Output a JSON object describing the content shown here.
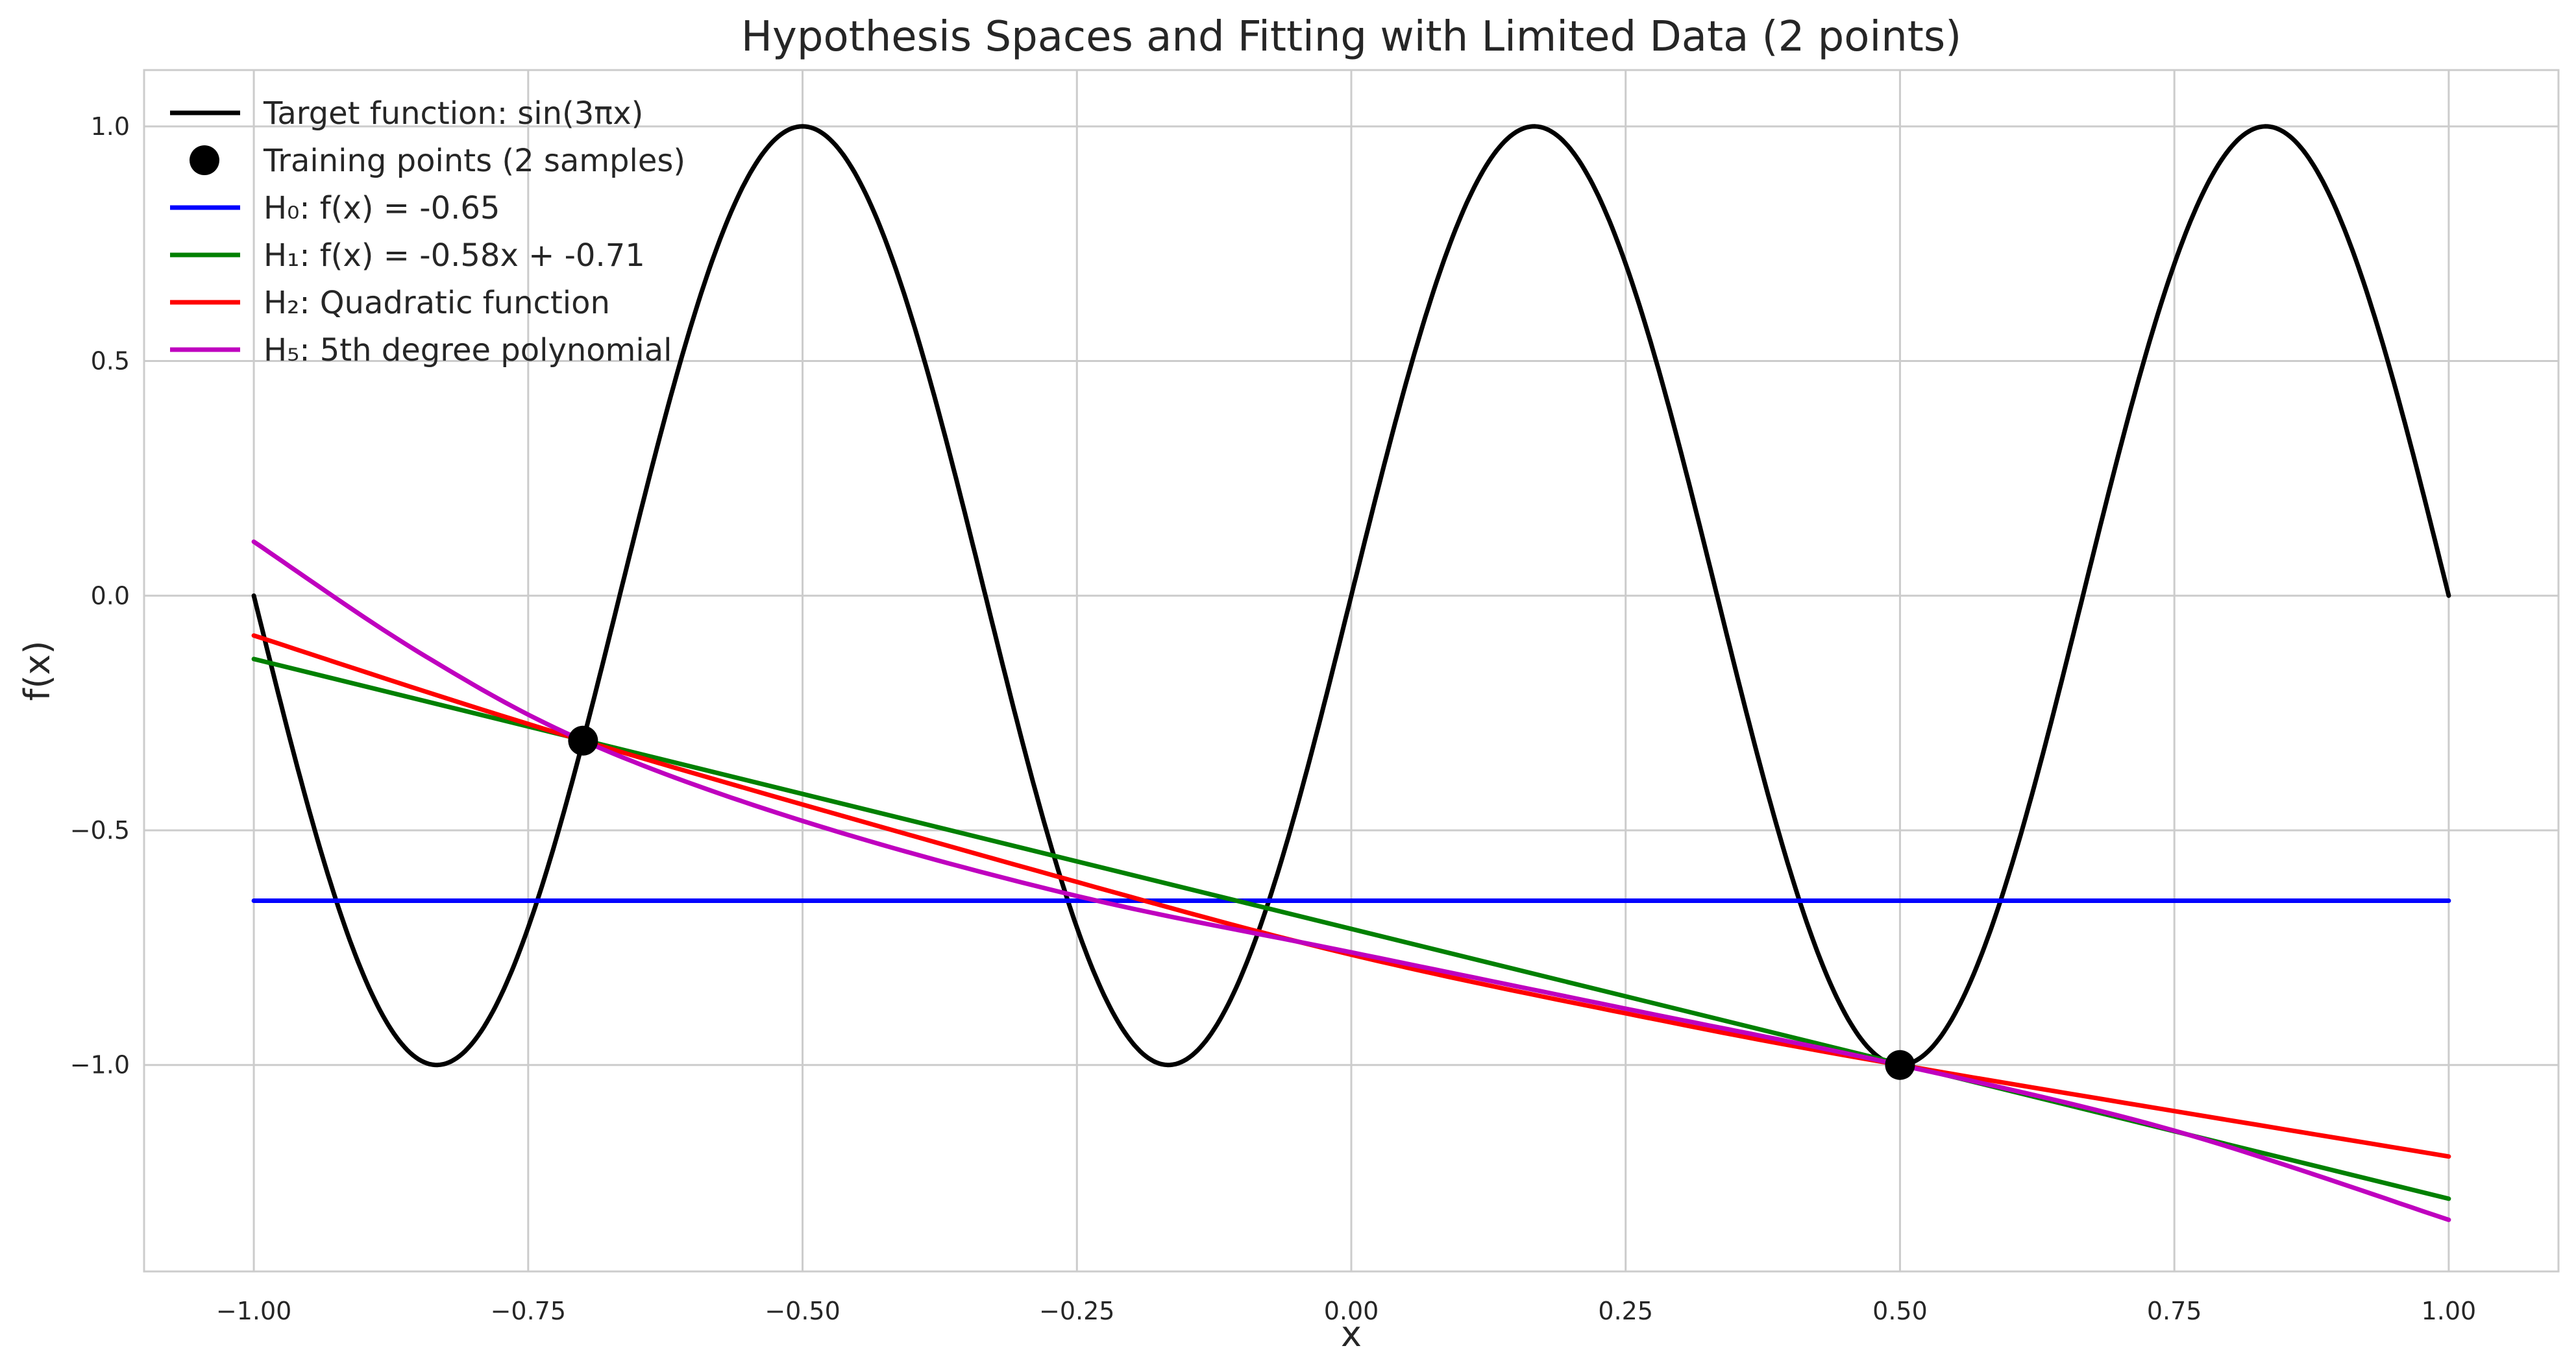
{
  "chart_data": {
    "type": "line",
    "title": "Hypothesis Spaces and Fitting with Limited Data (2 points)",
    "xlabel": "x",
    "ylabel": "f(x)",
    "xlim": [
      -1.1,
      1.1
    ],
    "ylim": [
      -1.44,
      1.12
    ],
    "grid": true,
    "legend_position": "top-left",
    "x_ticks": [
      -1.0,
      -0.75,
      -0.5,
      -0.25,
      0.0,
      0.25,
      0.5,
      0.75,
      1.0
    ],
    "x_tick_labels": [
      "−1.00",
      "−0.75",
      "−0.50",
      "−0.25",
      "0.00",
      "0.25",
      "0.50",
      "0.75",
      "1.00"
    ],
    "y_ticks": [
      -1.0,
      -0.5,
      0.0,
      0.5,
      1.0
    ],
    "y_tick_labels": [
      "−1.0",
      "−0.5",
      "0.0",
      "0.5",
      "1.0"
    ],
    "series": [
      {
        "name": "Target function: sin(3πx)",
        "kind": "line",
        "color": "#000000",
        "function": "sin(3*pi*x)",
        "x_range": [
          -1.0,
          1.0
        ]
      },
      {
        "name": "Training points (2 samples)",
        "kind": "scatter",
        "color": "#000000",
        "x": [
          -0.7,
          0.5
        ],
        "y": [
          -0.309,
          -1.0
        ]
      },
      {
        "name": "H₀: f(x) = -0.65",
        "kind": "line",
        "color": "#0000ff",
        "x": [
          -1.0,
          1.0
        ],
        "y": [
          -0.65,
          -0.65
        ]
      },
      {
        "name": "H₁: f(x) = -0.58x + -0.71",
        "kind": "line",
        "color": "#008000",
        "x": [
          -1.0,
          1.0
        ],
        "y": [
          -0.135,
          -1.285
        ]
      },
      {
        "name": "H₂: Quadratic function",
        "kind": "line",
        "color": "#ff0000",
        "x": [
          -1.0,
          -0.7,
          -0.25,
          0.0,
          0.25,
          0.5,
          1.0
        ],
        "y": [
          -0.085,
          -0.309,
          -0.61,
          -0.765,
          -0.89,
          -1.0,
          -1.195
        ]
      },
      {
        "name": "H₅: 5th degree polynomial",
        "kind": "line",
        "color": "#bf00bf",
        "x": [
          -1.0,
          -0.85,
          -0.7,
          -0.5,
          -0.25,
          0.0,
          0.25,
          0.5,
          0.75,
          1.0
        ],
        "y": [
          0.115,
          -0.12,
          -0.309,
          -0.48,
          -0.64,
          -0.76,
          -0.88,
          -1.0,
          -1.14,
          -1.33
        ]
      }
    ]
  }
}
